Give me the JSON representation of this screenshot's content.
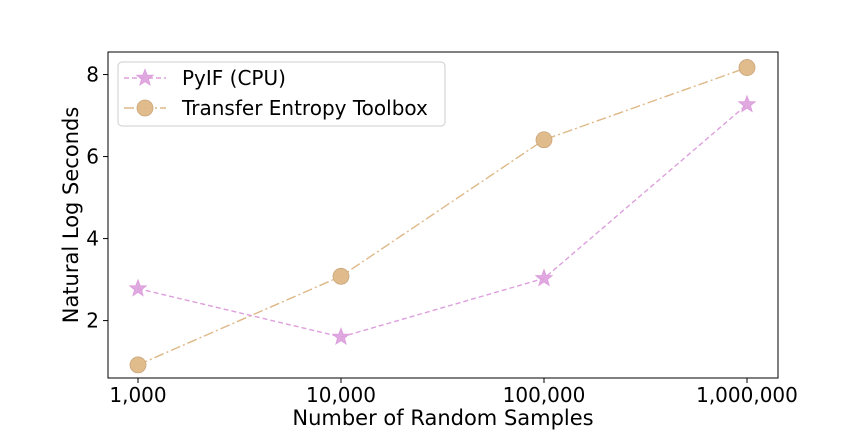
{
  "chart_data": {
    "type": "line",
    "xscale": "log",
    "x": [
      1000,
      10000,
      100000,
      1000000
    ],
    "x_tick_labels": [
      "1,000",
      "10,000",
      "100,000",
      "1,000,000"
    ],
    "xlabel": "Number of Random Samples",
    "ylabel": "Natural Log Seconds",
    "yticks": [
      2,
      4,
      6,
      8
    ],
    "ylim": [
      0.6,
      8.55
    ],
    "grid": false,
    "legend_position": "top-left",
    "series": [
      {
        "name": "PyIF (CPU)",
        "values": [
          2.78,
          1.6,
          3.03,
          7.27
        ],
        "color": "#dda0dd",
        "marker": "star",
        "linestyle": "dashed"
      },
      {
        "name": "Transfer Entropy Toolbox",
        "values": [
          0.92,
          3.08,
          6.41,
          8.17
        ],
        "color": "#deb887",
        "marker": "circle",
        "linestyle": "dashdot"
      }
    ]
  }
}
